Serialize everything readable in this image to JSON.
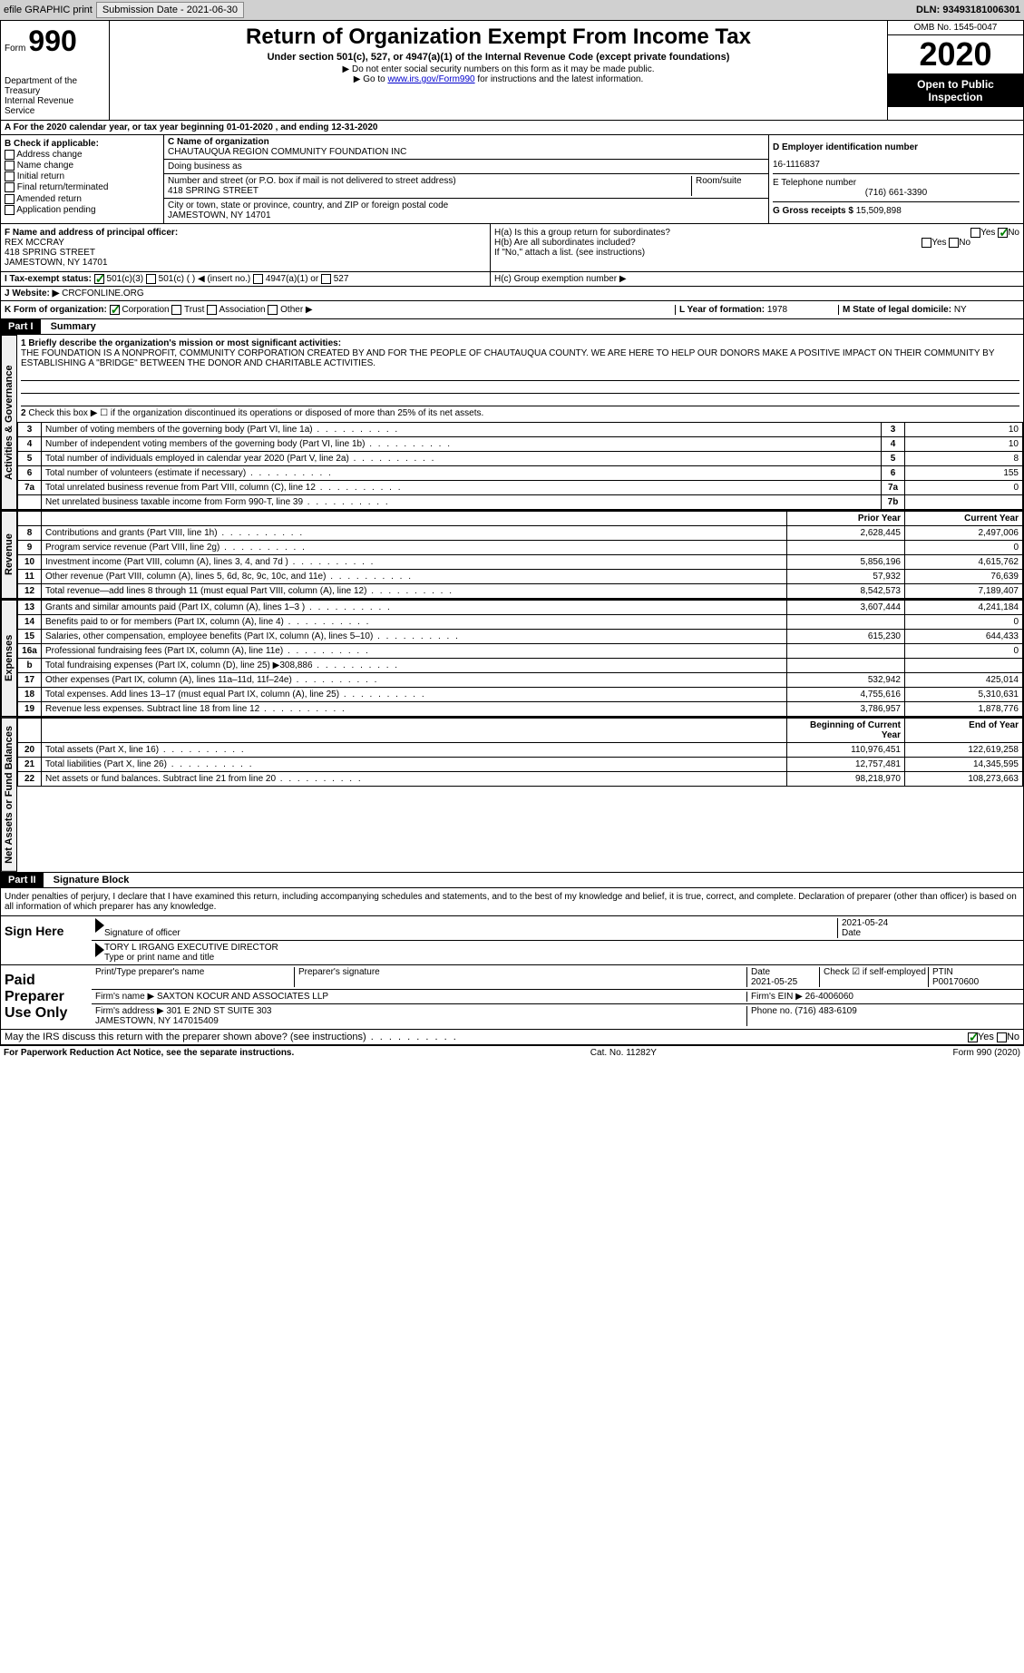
{
  "topbar": {
    "efile": "efile GRAPHIC print",
    "submission_label": "Submission Date - 2021-06-30",
    "dln": "DLN: 93493181006301"
  },
  "header": {
    "form_prefix": "Form",
    "form_number": "990",
    "title": "Return of Organization Exempt From Income Tax",
    "subtitle": "Under section 501(c), 527, or 4947(a)(1) of the Internal Revenue Code (except private foundations)",
    "note1": "▶ Do not enter social security numbers on this form as it may be made public.",
    "note2_pre": "▶ Go to ",
    "note2_link": "www.irs.gov/Form990",
    "note2_post": " for instructions and the latest information.",
    "omb": "OMB No. 1545-0047",
    "year": "2020",
    "inspection": "Open to Public Inspection",
    "dept": "Department of the Treasury\nInternal Revenue Service"
  },
  "a_row": "A For the 2020 calendar year, or tax year beginning 01-01-2020   , and ending 12-31-2020",
  "b": {
    "label": "B Check if applicable:",
    "addr": "Address change",
    "name": "Name change",
    "init": "Initial return",
    "final": "Final return/terminated",
    "amend": "Amended return",
    "app": "Application pending"
  },
  "c": {
    "name_label": "C Name of organization",
    "name": "CHAUTAUQUA REGION COMMUNITY FOUNDATION INC",
    "dba_label": "Doing business as",
    "dba": "",
    "addr_label": "Number and street (or P.O. box if mail is not delivered to street address)",
    "addr": "418 SPRING STREET",
    "room_label": "Room/suite",
    "city_label": "City or town, state or province, country, and ZIP or foreign postal code",
    "city": "JAMESTOWN, NY 14701"
  },
  "d": {
    "label": "D Employer identification number",
    "value": "16-1116837"
  },
  "e": {
    "label": "E Telephone number",
    "value": "(716) 661-3390"
  },
  "g": {
    "label": "G Gross receipts $ ",
    "value": "15,509,898"
  },
  "f": {
    "label": "F Name and address of principal officer:",
    "name": "REX MCCRAY",
    "addr1": "418 SPRING STREET",
    "addr2": "JAMESTOWN, NY  14701"
  },
  "h": {
    "a": "H(a)  Is this a group return for subordinates?",
    "b": "H(b)  Are all subordinates included?",
    "note": "If \"No,\" attach a list. (see instructions)",
    "c": "H(c)  Group exemption number ▶",
    "yes": "Yes",
    "no": "No"
  },
  "i": {
    "label": "I   Tax-exempt status:",
    "o1": "501(c)(3)",
    "o2": "501(c) (  ) ◀ (insert no.)",
    "o3": "4947(a)(1) or",
    "o4": "527"
  },
  "j": {
    "label": "J   Website: ▶",
    "value": "CRCFONLINE.ORG"
  },
  "k": {
    "label": "K Form of organization:",
    "corp": "Corporation",
    "trust": "Trust",
    "assoc": "Association",
    "other": "Other ▶"
  },
  "l": {
    "label": "L Year of formation: ",
    "value": "1978"
  },
  "m": {
    "label": "M State of legal domicile: ",
    "value": "NY"
  },
  "part1": {
    "hdr": "Part I",
    "title": "Summary",
    "line1_label": "1 Briefly describe the organization's mission or most significant activities:",
    "line1_text": "THE FOUNDATION IS A NONPROFIT, COMMUNITY CORPORATION CREATED BY AND FOR THE PEOPLE OF CHAUTAUQUA COUNTY. WE ARE HERE TO HELP OUR DONORS MAKE A POSITIVE IMPACT ON THEIR COMMUNITY BY ESTABLISHING A \"BRIDGE\" BETWEEN THE DONOR AND CHARITABLE ACTIVITIES.",
    "line2": "Check this box ▶ ☐ if the organization discontinued its operations or disposed of more than 25% of its net assets.",
    "prior_hdr": "Prior Year",
    "current_hdr": "Current Year",
    "begin_hdr": "Beginning of Current Year",
    "end_hdr": "End of Year"
  },
  "sections": {
    "gov": "Activities & Governance",
    "rev": "Revenue",
    "exp": "Expenses",
    "net": "Net Assets or Fund Balances"
  },
  "gov_rows": [
    {
      "n": "3",
      "t": "Number of voting members of the governing body (Part VI, line 1a)",
      "b": "3",
      "v": "10"
    },
    {
      "n": "4",
      "t": "Number of independent voting members of the governing body (Part VI, line 1b)",
      "b": "4",
      "v": "10"
    },
    {
      "n": "5",
      "t": "Total number of individuals employed in calendar year 2020 (Part V, line 2a)",
      "b": "5",
      "v": "8"
    },
    {
      "n": "6",
      "t": "Total number of volunteers (estimate if necessary)",
      "b": "6",
      "v": "155"
    },
    {
      "n": "7a",
      "t": "Total unrelated business revenue from Part VIII, column (C), line 12",
      "b": "7a",
      "v": "0"
    },
    {
      "n": "",
      "t": "Net unrelated business taxable income from Form 990-T, line 39",
      "b": "7b",
      "v": ""
    }
  ],
  "rev_rows": [
    {
      "n": "8",
      "t": "Contributions and grants (Part VIII, line 1h)",
      "p": "2,628,445",
      "c": "2,497,006"
    },
    {
      "n": "9",
      "t": "Program service revenue (Part VIII, line 2g)",
      "p": "",
      "c": "0"
    },
    {
      "n": "10",
      "t": "Investment income (Part VIII, column (A), lines 3, 4, and 7d )",
      "p": "5,856,196",
      "c": "4,615,762"
    },
    {
      "n": "11",
      "t": "Other revenue (Part VIII, column (A), lines 5, 6d, 8c, 9c, 10c, and 11e)",
      "p": "57,932",
      "c": "76,639"
    },
    {
      "n": "12",
      "t": "Total revenue—add lines 8 through 11 (must equal Part VIII, column (A), line 12)",
      "p": "8,542,573",
      "c": "7,189,407"
    }
  ],
  "exp_rows": [
    {
      "n": "13",
      "t": "Grants and similar amounts paid (Part IX, column (A), lines 1–3 )",
      "p": "3,607,444",
      "c": "4,241,184"
    },
    {
      "n": "14",
      "t": "Benefits paid to or for members (Part IX, column (A), line 4)",
      "p": "",
      "c": "0"
    },
    {
      "n": "15",
      "t": "Salaries, other compensation, employee benefits (Part IX, column (A), lines 5–10)",
      "p": "615,230",
      "c": "644,433"
    },
    {
      "n": "16a",
      "t": "Professional fundraising fees (Part IX, column (A), line 11e)",
      "p": "",
      "c": "0"
    },
    {
      "n": "b",
      "t": "Total fundraising expenses (Part IX, column (D), line 25) ▶308,886",
      "p": "",
      "c": ""
    },
    {
      "n": "17",
      "t": "Other expenses (Part IX, column (A), lines 11a–11d, 11f–24e)",
      "p": "532,942",
      "c": "425,014"
    },
    {
      "n": "18",
      "t": "Total expenses. Add lines 13–17 (must equal Part IX, column (A), line 25)",
      "p": "4,755,616",
      "c": "5,310,631"
    },
    {
      "n": "19",
      "t": "Revenue less expenses. Subtract line 18 from line 12",
      "p": "3,786,957",
      "c": "1,878,776"
    }
  ],
  "net_rows": [
    {
      "n": "20",
      "t": "Total assets (Part X, line 16)",
      "p": "110,976,451",
      "c": "122,619,258"
    },
    {
      "n": "21",
      "t": "Total liabilities (Part X, line 26)",
      "p": "12,757,481",
      "c": "14,345,595"
    },
    {
      "n": "22",
      "t": "Net assets or fund balances. Subtract line 21 from line 20",
      "p": "98,218,970",
      "c": "108,273,663"
    }
  ],
  "part2": {
    "hdr": "Part II",
    "title": "Signature Block",
    "decl": "Under penalties of perjury, I declare that I have examined this return, including accompanying schedules and statements, and to the best of my knowledge and belief, it is true, correct, and complete. Declaration of preparer (other than officer) is based on all information of which preparer has any knowledge."
  },
  "sign": {
    "here": "Sign Here",
    "sig_label": "Signature of officer",
    "date_label": "Date",
    "date": "2021-05-24",
    "name": "TORY L IRGANG  EXECUTIVE DIRECTOR",
    "name_label": "Type or print name and title"
  },
  "paid": {
    "label": "Paid Preparer Use Only",
    "prep_name_label": "Print/Type preparer's name",
    "prep_sig_label": "Preparer's signature",
    "date_label": "Date",
    "date": "2021-05-25",
    "self_label": "Check ☑ if self-employed",
    "ptin_label": "PTIN",
    "ptin": "P00170600",
    "firm_name_label": "Firm's name   ▶",
    "firm_name": "SAXTON KOCUR AND ASSOCIATES LLP",
    "firm_ein_label": "Firm's EIN ▶",
    "firm_ein": "26-4006060",
    "firm_addr_label": "Firm's address ▶",
    "firm_addr": "301 E 2ND ST SUITE 303\nJAMESTOWN, NY  147015409",
    "phone_label": "Phone no.",
    "phone": "(716) 483-6109"
  },
  "discuss": "May the IRS discuss this return with the preparer shown above? (see instructions)",
  "footer": {
    "pra": "For Paperwork Reduction Act Notice, see the separate instructions.",
    "cat": "Cat. No. 11282Y",
    "form": "Form 990 (2020)"
  }
}
